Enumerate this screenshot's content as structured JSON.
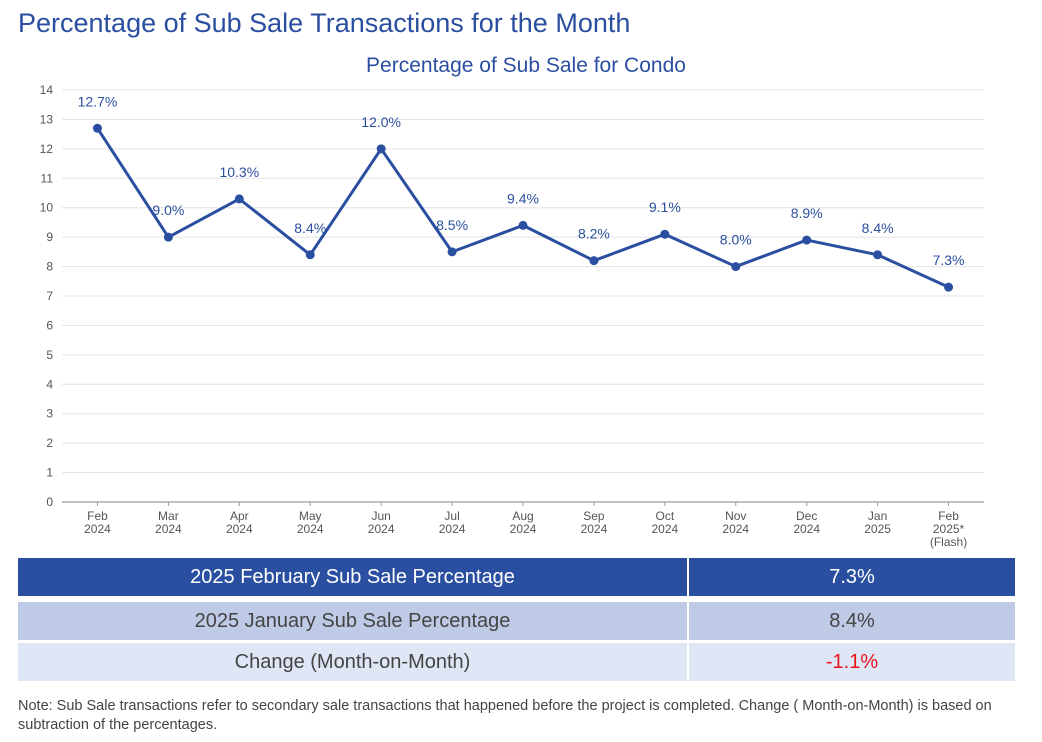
{
  "page_title": "Percentage of Sub Sale Transactions for the Month",
  "chart_data": {
    "type": "line",
    "title": "Percentage of Sub Sale for Condo",
    "xlabel": "",
    "ylabel": "",
    "ylim": [
      0,
      14
    ],
    "yticks": [
      0,
      1,
      2,
      3,
      4,
      5,
      6,
      7,
      8,
      9,
      10,
      11,
      12,
      13,
      14
    ],
    "grid": true,
    "categories": [
      [
        "Feb",
        "2024"
      ],
      [
        "Mar",
        "2024"
      ],
      [
        "Apr",
        "2024"
      ],
      [
        "May",
        "2024"
      ],
      [
        "Jun",
        "2024"
      ],
      [
        "Jul",
        "2024"
      ],
      [
        "Aug",
        "2024"
      ],
      [
        "Sep",
        "2024"
      ],
      [
        "Oct",
        "2024"
      ],
      [
        "Nov",
        "2024"
      ],
      [
        "Dec",
        "2024"
      ],
      [
        "Jan",
        "2025"
      ],
      [
        "Feb",
        "2025*",
        "(Flash)"
      ]
    ],
    "values": [
      12.7,
      9.0,
      10.3,
      8.4,
      12.0,
      8.5,
      9.4,
      8.2,
      9.1,
      8.0,
      8.9,
      8.4,
      7.3
    ],
    "data_labels": [
      "12.7%",
      "9.0%",
      "10.3%",
      "8.4%",
      "12.0%",
      "8.5%",
      "9.4%",
      "8.2%",
      "9.1%",
      "8.0%",
      "8.9%",
      "8.4%",
      "7.3%"
    ],
    "line_color": "#2b4fa0"
  },
  "summary": {
    "rows": [
      {
        "label": "2025 February Sub Sale Percentage",
        "value": "7.3%"
      },
      {
        "label": "2025 January Sub Sale Percentage",
        "value": "8.4%"
      },
      {
        "label": "Change (Month-on-Month)",
        "value": "-1.1%"
      }
    ],
    "colors": {
      "header": "#2b4fa0",
      "row2": "#bfcae6",
      "row3": "#dfe6f5",
      "negative": "#e8141c"
    }
  },
  "note": "Note: Sub Sale transactions refer to secondary sale transactions that happened before the project is completed. Change ( Month-on-Month) is based on subtraction of the percentages."
}
